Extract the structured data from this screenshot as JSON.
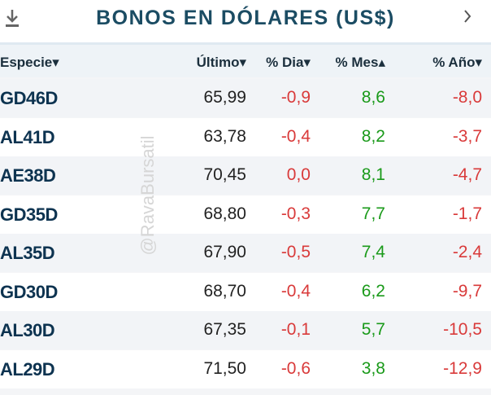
{
  "header": {
    "title": "BONOS EN DÓLARES (US$)"
  },
  "watermark": "@RavaBursatil",
  "table": {
    "columns": [
      "Especie▾",
      "Último▾",
      "% Dia▾",
      "% Mes▴",
      "% Año▾"
    ],
    "rows": [
      [
        "GD46D",
        "65,99",
        "-0,9",
        "8,6",
        "-8,0"
      ],
      [
        "AL41D",
        "63,78",
        "-0,4",
        "8,2",
        "-3,7"
      ],
      [
        "AE38D",
        "70,45",
        "0,0",
        "8,1",
        "-4,7"
      ],
      [
        "GD35D",
        "68,80",
        "-0,3",
        "7,7",
        "-1,7"
      ],
      [
        "AL35D",
        "67,90",
        "-0,5",
        "7,4",
        "-2,4"
      ],
      [
        "GD30D",
        "68,70",
        "-0,4",
        "6,2",
        "-9,7"
      ],
      [
        "AL30D",
        "67,35",
        "-0,1",
        "5,7",
        "-10,5"
      ],
      [
        "AL29D",
        "71,50",
        "-0,6",
        "3,8",
        "-12,9"
      ]
    ]
  }
}
